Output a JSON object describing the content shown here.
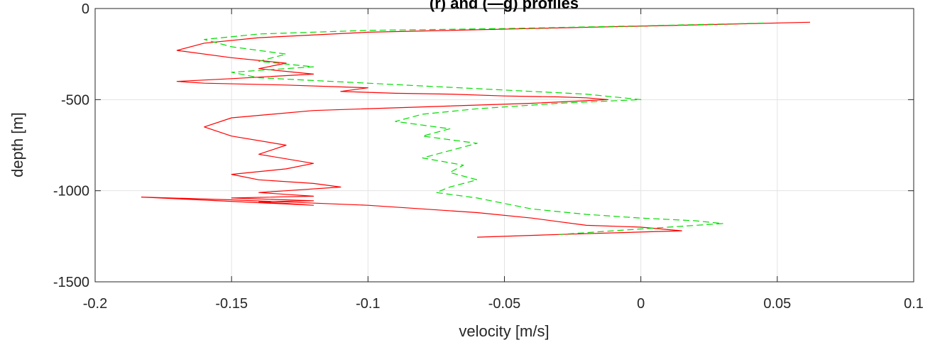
{
  "chart_data": {
    "type": "line",
    "title": "(r) and (—g) profiles",
    "xlabel": "velocity [m/s]",
    "ylabel": "depth [m]",
    "xlim": [
      -0.2,
      0.1
    ],
    "ylim": [
      -1500,
      0
    ],
    "xticks": [
      -0.2,
      -0.15,
      -0.1,
      -0.05,
      0,
      0.05,
      0.1
    ],
    "xtick_labels": [
      "-0.2",
      "-0.15",
      "-0.1",
      "-0.05",
      "0",
      "0.05",
      "0.1"
    ],
    "yticks": [
      0,
      -500,
      -1000,
      -1500
    ],
    "ytick_labels": [
      "0",
      "-500",
      "-1000",
      "-1500"
    ],
    "grid": true,
    "series": [
      {
        "color": "#ff0000",
        "line_style": "solid",
        "x": [
          0.062,
          0.02,
          -0.04,
          -0.1,
          -0.14,
          -0.16,
          -0.17,
          -0.15,
          -0.13,
          -0.14,
          -0.12,
          -0.15,
          -0.17,
          -0.16,
          -0.13,
          -0.1,
          -0.11,
          -0.09,
          -0.07,
          -0.05,
          -0.03,
          -0.02,
          -0.012,
          -0.04,
          -0.08,
          -0.12,
          -0.15,
          -0.16,
          -0.15,
          -0.13,
          -0.14,
          -0.12,
          -0.13,
          -0.15,
          -0.14,
          -0.12,
          -0.11,
          -0.13,
          -0.14,
          -0.13,
          -0.12,
          -0.15,
          -0.13,
          -0.12,
          -0.14,
          -0.13,
          -0.12,
          -0.183,
          -0.15,
          -0.1,
          -0.08,
          -0.06,
          -0.04,
          -0.03,
          -0.02,
          0.0,
          0.015,
          -0.03,
          -0.06
        ],
        "y": [
          -75,
          -90,
          -110,
          -130,
          -160,
          -190,
          -230,
          -270,
          -300,
          -330,
          -360,
          -385,
          -400,
          -410,
          -420,
          -435,
          -455,
          -465,
          -470,
          -480,
          -485,
          -490,
          -500,
          -520,
          -540,
          -560,
          -600,
          -650,
          -700,
          -750,
          -800,
          -850,
          -880,
          -910,
          -940,
          -960,
          -980,
          -1000,
          -1010,
          -1020,
          -1030,
          -1040,
          -1050,
          -1055,
          -1060,
          -1070,
          -1080,
          -1035,
          -1050,
          -1080,
          -1100,
          -1120,
          -1150,
          -1170,
          -1190,
          -1200,
          -1220,
          -1240,
          -1255
        ]
      },
      {
        "color": "#00dd00",
        "line_style": "dashed",
        "x": [
          0.045,
          0.0,
          -0.05,
          -0.1,
          -0.14,
          -0.16,
          -0.15,
          -0.13,
          -0.14,
          -0.12,
          -0.15,
          -0.14,
          -0.12,
          -0.1,
          -0.08,
          -0.06,
          -0.04,
          -0.02,
          -0.01,
          0.0,
          -0.03,
          -0.06,
          -0.08,
          -0.09,
          -0.07,
          -0.08,
          -0.06,
          -0.07,
          -0.08,
          -0.065,
          -0.07,
          -0.06,
          -0.07,
          -0.075,
          -0.06,
          -0.05,
          -0.04,
          -0.02,
          0.0,
          0.02,
          0.03,
          0.01,
          -0.01,
          -0.03
        ],
        "y": [
          -80,
          -95,
          -110,
          -120,
          -140,
          -170,
          -210,
          -250,
          -290,
          -320,
          -350,
          -380,
          -395,
          -410,
          -425,
          -440,
          -455,
          -470,
          -485,
          -500,
          -520,
          -550,
          -580,
          -620,
          -660,
          -700,
          -740,
          -780,
          -820,
          -860,
          -900,
          -940,
          -980,
          -1010,
          -1040,
          -1070,
          -1100,
          -1130,
          -1150,
          -1165,
          -1180,
          -1200,
          -1220,
          -1240
        ]
      }
    ]
  }
}
